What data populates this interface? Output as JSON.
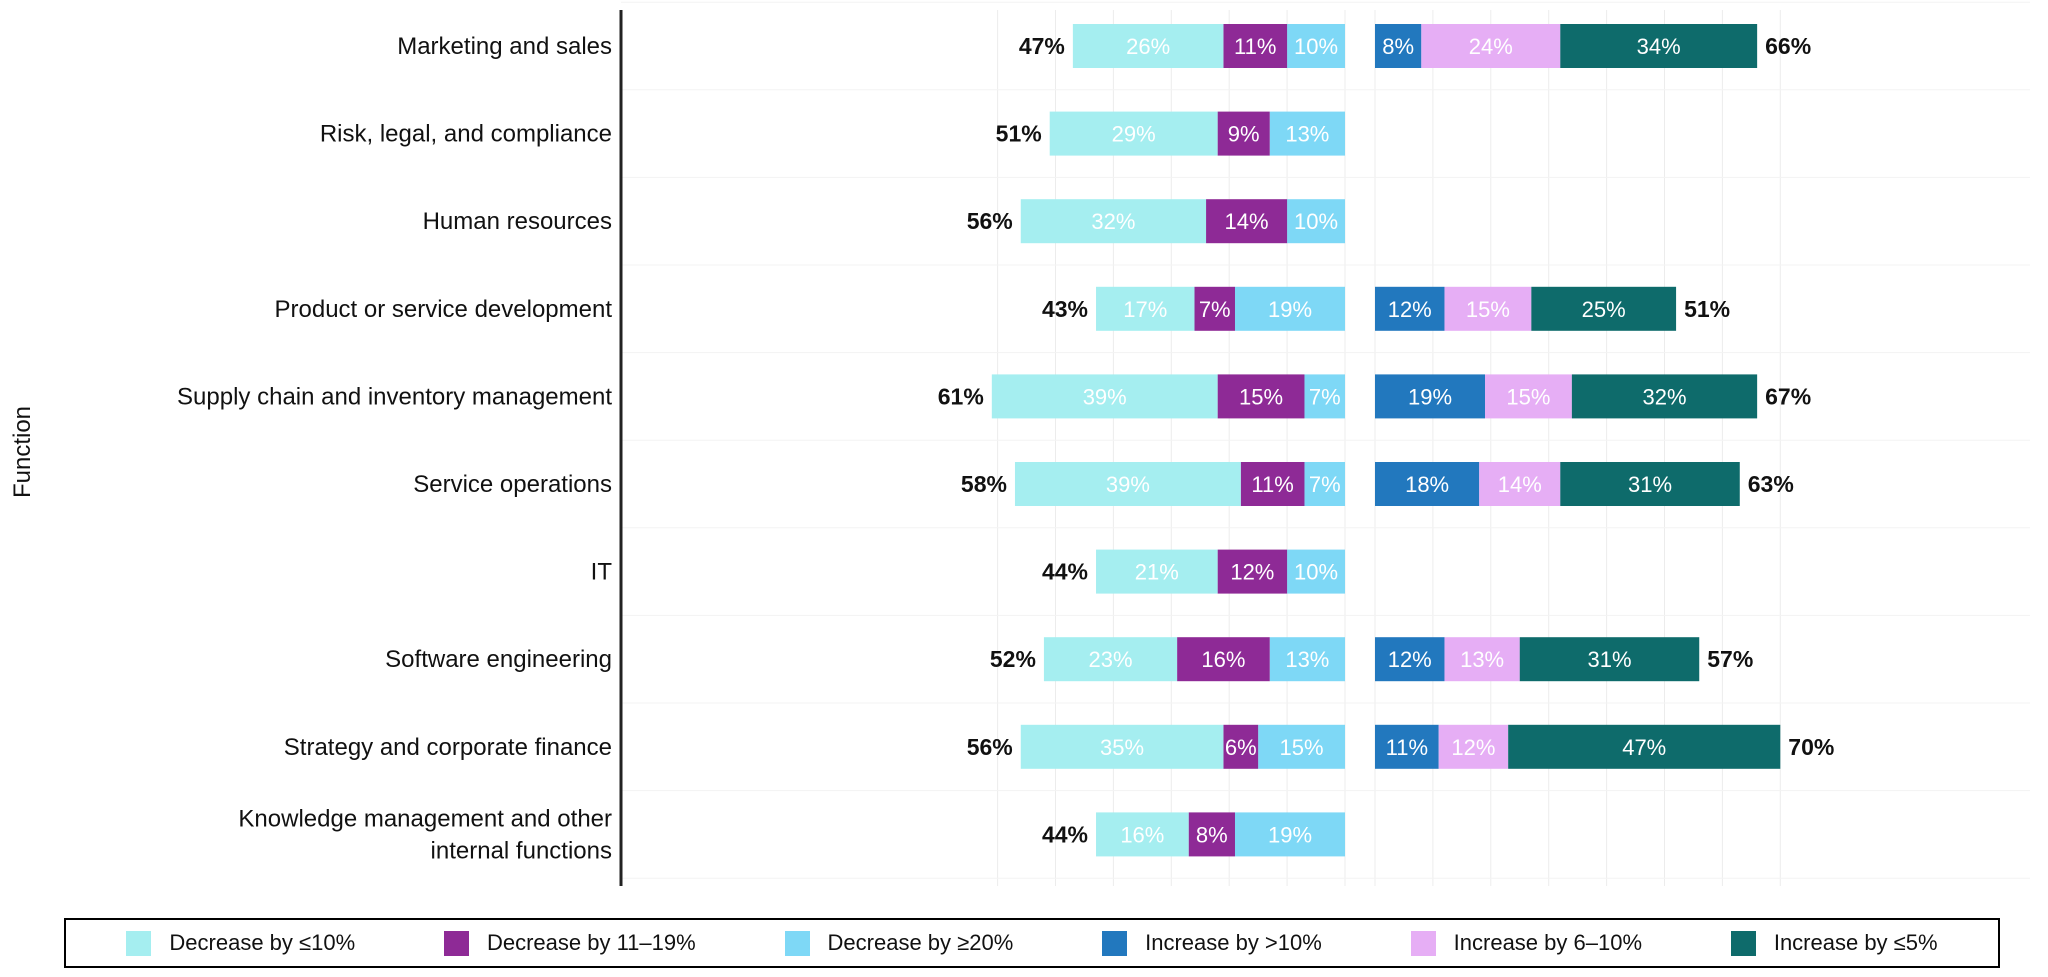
{
  "chart_data": {
    "type": "bar",
    "orientation": "horizontal",
    "stacked": true,
    "ylabel": "Function",
    "categories": [
      "Marketing and sales",
      "Risk, legal, and compliance",
      "Human resources",
      "Product or service development",
      "Supply chain and inventory management",
      "Service operations",
      "IT",
      "Software engineering",
      "Strategy and corporate finance",
      "Knowledge management and other internal functions"
    ],
    "series": [
      {
        "name": "Decrease by ≤10%",
        "group": "decrease",
        "color": "#A5EEF0",
        "values": [
          26,
          29,
          32,
          17,
          39,
          39,
          21,
          23,
          35,
          16
        ]
      },
      {
        "name": "Decrease by 11–19%",
        "group": "decrease",
        "color": "#8E2A96",
        "values": [
          11,
          9,
          14,
          7,
          15,
          11,
          12,
          16,
          6,
          8
        ]
      },
      {
        "name": "Decrease by ≥20%",
        "group": "decrease",
        "color": "#7ED8F6",
        "values": [
          10,
          13,
          10,
          19,
          7,
          7,
          10,
          13,
          15,
          19
        ]
      },
      {
        "name": "Increase by >10%",
        "group": "increase",
        "color": "#2278BE",
        "values": [
          8,
          null,
          null,
          12,
          19,
          18,
          null,
          12,
          11,
          null
        ]
      },
      {
        "name": "Increase by 6–10%",
        "group": "increase",
        "color": "#E6AEF5",
        "values": [
          24,
          null,
          null,
          15,
          15,
          14,
          null,
          13,
          12,
          null
        ]
      },
      {
        "name": "Increase by ≤5%",
        "group": "increase",
        "color": "#0E6B6B",
        "values": [
          34,
          null,
          null,
          25,
          32,
          31,
          null,
          31,
          47,
          null
        ]
      }
    ],
    "decrease_totals": [
      47,
      51,
      56,
      43,
      61,
      58,
      44,
      52,
      56,
      44
    ],
    "increase_totals": [
      66,
      null,
      null,
      51,
      67,
      63,
      null,
      57,
      70,
      null
    ],
    "light_label_series": [
      "Decrease by ≤10%",
      "Increase by 6–10%"
    ],
    "legend": {
      "placement": "bottom"
    }
  }
}
